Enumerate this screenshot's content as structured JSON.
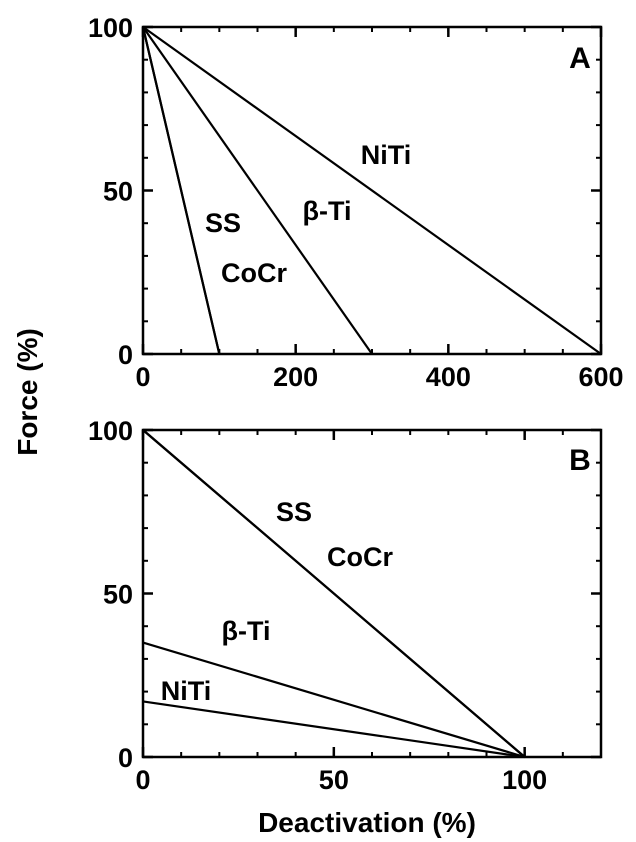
{
  "chart_data": [
    {
      "panel": "A",
      "type": "line",
      "xlabel": "",
      "ylabel": "Force (%)",
      "xlim": [
        0,
        600
      ],
      "ylim": [
        0,
        100
      ],
      "xticks": [
        0,
        200,
        400,
        600
      ],
      "yticks": [
        0,
        50,
        100
      ],
      "series": [
        {
          "name": "SS",
          "points": [
            [
              0,
              100
            ],
            [
              100,
              0
            ]
          ]
        },
        {
          "name": "CoCr",
          "points": [
            [
              0,
              100
            ],
            [
              100,
              0
            ]
          ]
        },
        {
          "name": "β-Ti",
          "points": [
            [
              0,
              100
            ],
            [
              300,
              0
            ]
          ]
        },
        {
          "name": "NiTi",
          "points": [
            [
              0,
              100
            ],
            [
              600,
              0
            ]
          ]
        }
      ],
      "grid": false
    },
    {
      "panel": "B",
      "type": "line",
      "xlabel": "Deactivation (%)",
      "ylabel": "Force (%)",
      "xlim": [
        0,
        120
      ],
      "ylim": [
        0,
        100
      ],
      "xticks": [
        0,
        50,
        100
      ],
      "yticks": [
        0,
        50,
        100
      ],
      "series": [
        {
          "name": "SS",
          "points": [
            [
              0,
              100
            ],
            [
              100,
              0
            ]
          ]
        },
        {
          "name": "CoCr",
          "points": [
            [
              0,
              100
            ],
            [
              100,
              0
            ]
          ]
        },
        {
          "name": "β-Ti",
          "points": [
            [
              0,
              35
            ],
            [
              100,
              0
            ]
          ]
        },
        {
          "name": "NiTi",
          "points": [
            [
              0,
              17
            ],
            [
              100,
              0
            ]
          ]
        }
      ],
      "grid": false
    }
  ]
}
